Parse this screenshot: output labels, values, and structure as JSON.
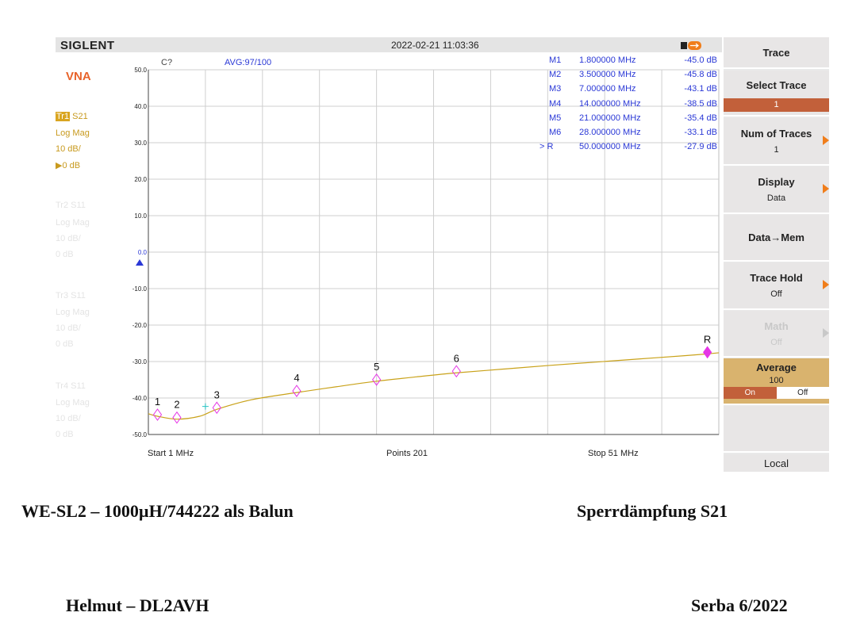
{
  "header": {
    "brand": "SIGLENT",
    "datetime": "2022-02-21 11:03:36"
  },
  "left_panel": {
    "mode": "VNA",
    "traces": [
      {
        "badge": "Tr1",
        "param": "S21",
        "format": "Log Mag",
        "scale": "10 dB/",
        "ref": "▶0 dB",
        "active": true
      },
      {
        "badge": "Tr2",
        "param": "S11",
        "format": "Log Mag",
        "scale": "10 dB/",
        "ref": "0 dB",
        "active": false
      },
      {
        "badge": "Tr3",
        "param": "S11",
        "format": "Log Mag",
        "scale": "10 dB/",
        "ref": "0 dB",
        "active": false
      },
      {
        "badge": "Tr4",
        "param": "S11",
        "format": "Log Mag",
        "scale": "10 dB/",
        "ref": "0 dB",
        "active": false
      }
    ]
  },
  "plot": {
    "cal_status": "C?",
    "avg_status": "AVG:97/100",
    "y_ticks": [
      "50.0",
      "40.0",
      "30.0",
      "20.0",
      "10.0",
      "0.0",
      "-10.0",
      "-20.0",
      "-30.0",
      "-40.0",
      "-50.0"
    ],
    "start_label": "Start  1 MHz",
    "points_label": "Points  201",
    "stop_label": "Stop  51 MHz",
    "markers": [
      {
        "name": "M1",
        "freq": "1.800000 MHz",
        "value": "-45.0 dB",
        "label": "1"
      },
      {
        "name": "M2",
        "freq": "3.500000 MHz",
        "value": "-45.8 dB",
        "label": "2"
      },
      {
        "name": "M3",
        "freq": "7.000000 MHz",
        "value": "-43.1 dB",
        "label": "3"
      },
      {
        "name": "M4",
        "freq": "14.000000 MHz",
        "value": "-38.5 dB",
        "label": "4"
      },
      {
        "name": "M5",
        "freq": "21.000000 MHz",
        "value": "-35.4 dB",
        "label": "5"
      },
      {
        "name": "M6",
        "freq": "28.000000 MHz",
        "value": "-33.1 dB",
        "label": "6"
      },
      {
        "name": "R",
        "prefix": ">",
        "freq": "50.000000 MHz",
        "value": "-27.9 dB",
        "label": "R"
      }
    ]
  },
  "chart_data": {
    "type": "line",
    "x_unit": "MHz",
    "xlim": [
      1,
      51
    ],
    "ylim": [
      -50,
      50
    ],
    "series": [
      {
        "name": "S21",
        "x": [
          1,
          1.8,
          3.5,
          5.5,
          7,
          10,
          14,
          17.5,
          21,
          24.5,
          28,
          32,
          36,
          40,
          44,
          48,
          50,
          51
        ],
        "y": [
          -44.3,
          -45.0,
          -45.8,
          -45.0,
          -43.1,
          -40.5,
          -38.5,
          -36.9,
          -35.4,
          -34.2,
          -33.1,
          -32.1,
          -31.1,
          -30.2,
          -29.3,
          -28.4,
          -27.9,
          -27.6
        ]
      }
    ],
    "marker_points": [
      {
        "label": "1",
        "x": 1.8,
        "y": -45.0
      },
      {
        "label": "2",
        "x": 3.5,
        "y": -45.8
      },
      {
        "label": "3",
        "x": 7.0,
        "y": -43.1
      },
      {
        "label": "4",
        "x": 14.0,
        "y": -38.5
      },
      {
        "label": "5",
        "x": 21.0,
        "y": -35.4
      },
      {
        "label": "6",
        "x": 28.0,
        "y": -33.1
      },
      {
        "label": "R",
        "x": 50.0,
        "y": -27.9
      }
    ],
    "ref_level": 0,
    "grid": true
  },
  "softkeys": {
    "menu_title": "Trace",
    "select_trace": "Select Trace",
    "select_trace_value": "1",
    "num_traces": "Num of Traces",
    "num_traces_value": "1",
    "display": "Display",
    "display_value": "Data",
    "data_mem": "Data→Mem",
    "trace_hold": "Trace Hold",
    "trace_hold_value": "Off",
    "math": "Math",
    "math_value": "Off",
    "average": "Average",
    "average_value": "100",
    "average_on": "On",
    "average_off": "Off",
    "local": "Local"
  },
  "captions": {
    "title_left": "WE-SL2 – 1000µH/744222 als Balun",
    "title_right": "Sperrdämpfung S21",
    "author": "Helmut – DL2AVH",
    "event": "Serba 6/2022"
  },
  "colors": {
    "trace": "#c9a21a",
    "marker": "#e535e5",
    "marker_text": "#2a38d6",
    "accent": "#f07d1a",
    "active_button": "#c2603a",
    "average_bg": "#d9b36e"
  }
}
